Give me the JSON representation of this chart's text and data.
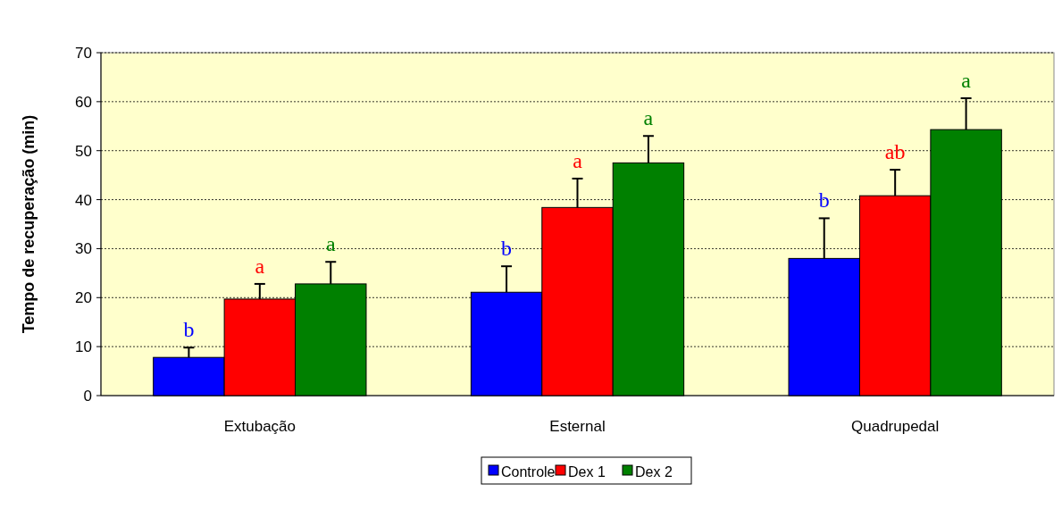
{
  "chart_data": {
    "type": "bar",
    "ylabel": "Tempo de recuperação (min)",
    "categories": [
      "Extubação",
      "Esternal",
      "Quadrupedal"
    ],
    "series": [
      {
        "name": "Controle",
        "color": "#0000ff",
        "values": [
          7.8,
          21.1,
          28.0
        ],
        "errors": [
          [
            7.8,
            9.8
          ],
          [
            21.1,
            26.4
          ],
          [
            28.0,
            36.2
          ]
        ],
        "value_labels": [
          "b",
          "b",
          "b"
        ]
      },
      {
        "name": "Dex 1",
        "color": "#ff0000",
        "values": [
          19.7,
          38.4,
          40.8
        ],
        "errors": [
          [
            19.7,
            22.8
          ],
          [
            38.4,
            44.3
          ],
          [
            40.8,
            46.1
          ]
        ],
        "value_labels": [
          "a",
          "a",
          "ab"
        ]
      },
      {
        "name": "Dex 2",
        "color": "#008000",
        "values": [
          22.8,
          47.5,
          54.3
        ],
        "errors": [
          [
            22.8,
            27.3
          ],
          [
            47.5,
            53.0
          ],
          [
            54.3,
            60.7
          ]
        ],
        "value_labels": [
          "a",
          "a",
          "a"
        ]
      }
    ],
    "ylim": [
      0,
      70
    ],
    "yticks": [
      0,
      10,
      20,
      30,
      40,
      50,
      60,
      70
    ],
    "grid": "y",
    "legend": "bottom"
  }
}
